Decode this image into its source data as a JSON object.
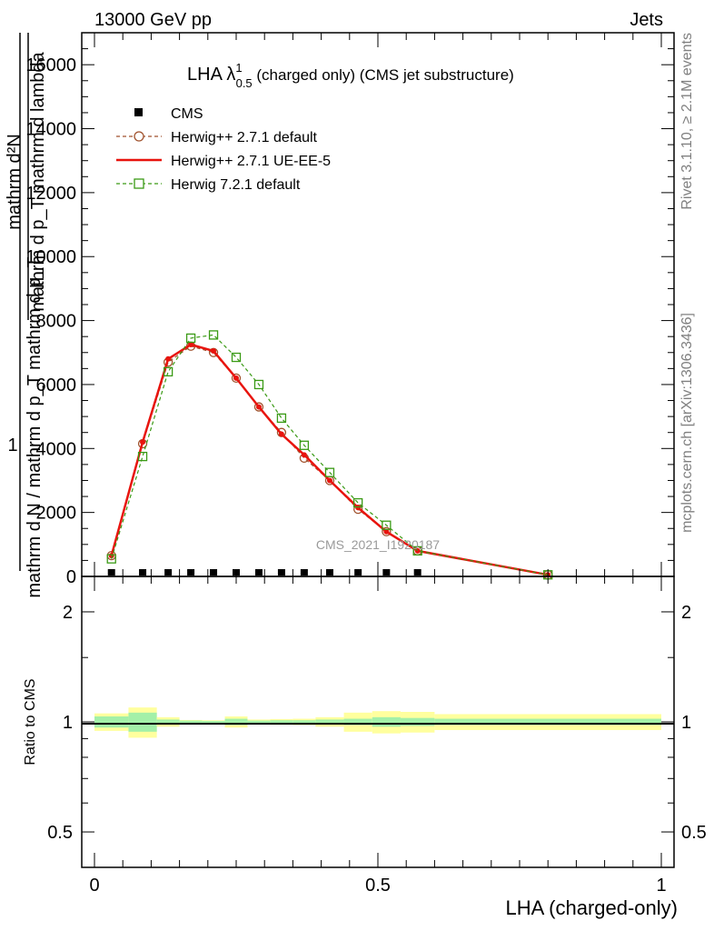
{
  "header": {
    "left": "13000 GeV pp",
    "right": "Jets"
  },
  "side_labels": {
    "rivet": "Rivet 3.1.10, ≥ 2.1M events",
    "mcplots": "mcplots.cern.ch [arXiv:1306.3436]"
  },
  "plot_title": {
    "main": "LHA λ",
    "sup": "1",
    "sub": "0.5",
    "rest": " (charged only) (CMS jet substructure)"
  },
  "watermark": "CMS_2021_I1920187",
  "y_axis_label": {
    "top_numerator": "mathrm d²N",
    "top_denominator": "mathrm d p_T mathrm d lambda",
    "one": "1",
    "bottom": "mathrm d N / mathrm d p_T mathrm d p_T"
  },
  "ratio_ylabel": "Ratio to CMS",
  "x_axis_label": "LHA (charged-only)",
  "legend": [
    {
      "label": "CMS",
      "color": "#000000",
      "marker": "square-filled"
    },
    {
      "label": "Herwig++ 2.7.1 default",
      "color": "#a0522d",
      "marker": "circle-open"
    },
    {
      "label": "Herwig++ 2.7.1 UE-EE-5",
      "color": "#e8140e",
      "marker": "point"
    },
    {
      "label": "Herwig 7.2.1 default",
      "color": "#3a9a15",
      "marker": "square-open"
    }
  ],
  "chart_data": {
    "type": "line",
    "xlim": [
      0,
      1
    ],
    "ylim": [
      0,
      17000
    ],
    "main_yticks": [
      {
        "v": 0,
        "label": "0"
      },
      {
        "v": 2000,
        "label": "2000"
      },
      {
        "v": 4000,
        "label": "4000"
      },
      {
        "v": 6000,
        "label": "6000"
      },
      {
        "v": 8000,
        "label": "8000"
      },
      {
        "v": 10000,
        "label": "10000"
      },
      {
        "v": 12000,
        "label": "12000"
      },
      {
        "v": 14000,
        "label": "14000"
      },
      {
        "v": 16000,
        "label": "16000"
      }
    ],
    "xticks": [
      {
        "v": 0,
        "label": "0"
      },
      {
        "v": 0.5,
        "label": "0.5"
      },
      {
        "v": 1,
        "label": "1"
      }
    ],
    "series": [
      {
        "name": "CMS",
        "x": [
          0.03,
          0.085,
          0.13,
          0.17,
          0.21,
          0.25,
          0.29,
          0.33,
          0.37,
          0.415,
          0.465,
          0.515,
          0.57
        ],
        "values": [
          0,
          0,
          0,
          0,
          0,
          0,
          0,
          0,
          0,
          0,
          0,
          0,
          0
        ]
      },
      {
        "name": "Herwig++ 2.7.1 default",
        "x": [
          0.03,
          0.085,
          0.13,
          0.17,
          0.21,
          0.25,
          0.29,
          0.33,
          0.37,
          0.415,
          0.465,
          0.515,
          0.57,
          0.8
        ],
        "values": [
          650,
          4150,
          6700,
          7200,
          7000,
          6200,
          5300,
          4500,
          3700,
          3000,
          2100,
          1400,
          800,
          50
        ]
      },
      {
        "name": "Herwig++ 2.7.1 UE-EE-5",
        "x": [
          0.03,
          0.085,
          0.13,
          0.17,
          0.21,
          0.25,
          0.29,
          0.33,
          0.37,
          0.415,
          0.465,
          0.515,
          0.57,
          0.8
        ],
        "values": [
          650,
          4200,
          6800,
          7250,
          7050,
          6200,
          5300,
          4450,
          3800,
          3000,
          2150,
          1400,
          800,
          50
        ]
      },
      {
        "name": "Herwig 7.2.1 default",
        "x": [
          0.03,
          0.085,
          0.13,
          0.17,
          0.21,
          0.25,
          0.29,
          0.33,
          0.37,
          0.415,
          0.465,
          0.515,
          0.57,
          0.8
        ],
        "values": [
          550,
          3750,
          6400,
          7450,
          7550,
          6850,
          6000,
          4950,
          4100,
          3250,
          2300,
          1600,
          800,
          50
        ]
      }
    ],
    "ratio": {
      "ylim_log": [
        0.4,
        2.5
      ],
      "yticks": [
        {
          "v": 0.5,
          "label": "0.5"
        },
        {
          "v": 1,
          "label": "1"
        },
        {
          "v": 2,
          "label": "2"
        }
      ],
      "bins": [
        {
          "x0": 0.0,
          "x1": 0.06,
          "inner": 0.035,
          "outer": 0.055
        },
        {
          "x0": 0.06,
          "x1": 0.11,
          "inner": 0.06,
          "outer": 0.095
        },
        {
          "x0": 0.11,
          "x1": 0.15,
          "inner": 0.015,
          "outer": 0.03
        },
        {
          "x0": 0.15,
          "x1": 0.19,
          "inner": 0.008,
          "outer": 0.012
        },
        {
          "x0": 0.19,
          "x1": 0.23,
          "inner": 0.006,
          "outer": 0.01
        },
        {
          "x0": 0.23,
          "x1": 0.27,
          "inner": 0.02,
          "outer": 0.035
        },
        {
          "x0": 0.27,
          "x1": 0.31,
          "inner": 0.008,
          "outer": 0.015
        },
        {
          "x0": 0.31,
          "x1": 0.35,
          "inner": 0.01,
          "outer": 0.018
        },
        {
          "x0": 0.35,
          "x1": 0.39,
          "inner": 0.01,
          "outer": 0.02
        },
        {
          "x0": 0.39,
          "x1": 0.44,
          "inner": 0.015,
          "outer": 0.03
        },
        {
          "x0": 0.44,
          "x1": 0.49,
          "inner": 0.02,
          "outer": 0.06
        },
        {
          "x0": 0.49,
          "x1": 0.54,
          "inner": 0.03,
          "outer": 0.07
        },
        {
          "x0": 0.54,
          "x1": 0.6,
          "inner": 0.025,
          "outer": 0.065
        },
        {
          "x0": 0.6,
          "x1": 1.0,
          "inner": 0.02,
          "outer": 0.05
        }
      ]
    }
  }
}
